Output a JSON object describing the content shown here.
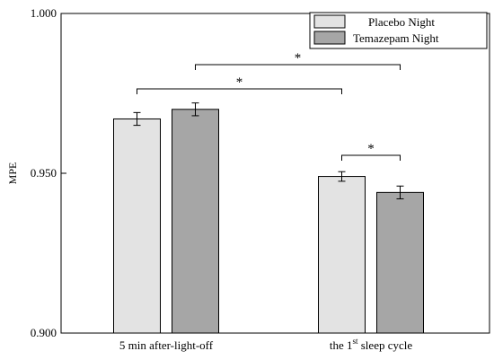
{
  "chart_data": {
    "type": "bar",
    "ylabel": "MPE",
    "ylim": [
      0.9,
      1.0
    ],
    "yticks": [
      "0.900",
      "0.950",
      "1.000"
    ],
    "yticks_values": [
      0.9,
      0.95,
      1.0
    ],
    "categories": [
      {
        "prefix": "5 min after-light-off",
        "sup": "",
        "suffix": ""
      },
      {
        "prefix": "the 1",
        "sup": "st",
        "suffix": " sleep cycle"
      }
    ],
    "series": [
      {
        "name": "Placebo Night",
        "color": "#e3e3e3",
        "values": [
          0.967,
          0.949
        ],
        "errors": [
          0.002,
          0.0015
        ]
      },
      {
        "name": "Temazepam Night",
        "color": "#a6a6a6",
        "values": [
          0.97,
          0.944
        ],
        "errors": [
          0.002,
          0.002
        ]
      }
    ],
    "legend_position": "top-right",
    "significance": [
      {
        "label": "*",
        "from": [
          0,
          0
        ],
        "to": [
          1,
          0
        ]
      },
      {
        "label": "*",
        "from": [
          0,
          1
        ],
        "to": [
          1,
          1
        ]
      },
      {
        "label": "*",
        "from": [
          1,
          0
        ],
        "to": [
          1,
          1
        ]
      }
    ]
  }
}
